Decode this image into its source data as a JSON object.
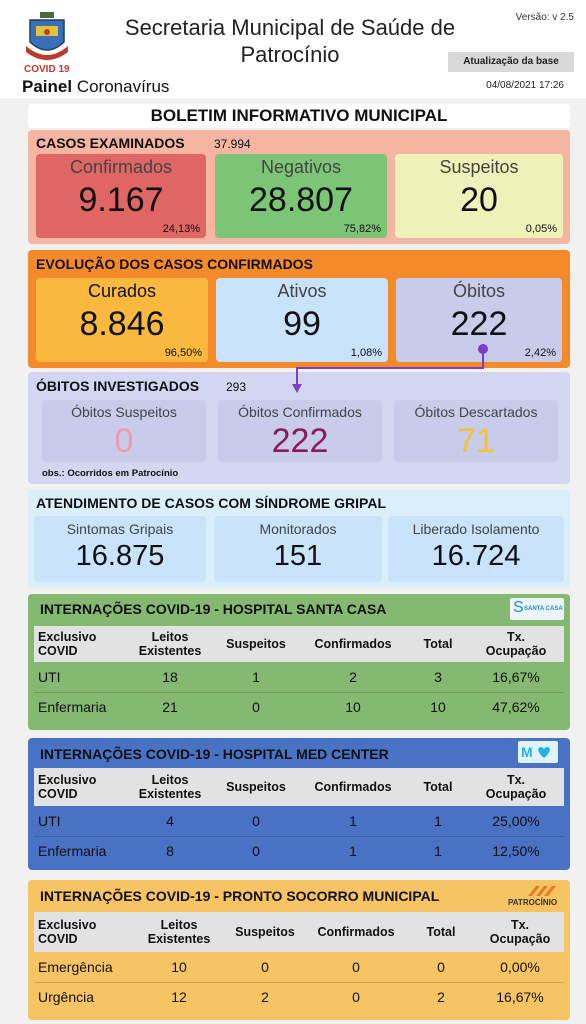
{
  "header": {
    "title": "Secretaria Municipal de Saúde de Patrocínio",
    "version": "Versão: v 2.5",
    "covid_tag": "COVID 19",
    "painel_bold": "Painel",
    "painel_rest": " Coronavírus",
    "update_label": "Atualização da base",
    "update_datetime": "04/08/2021 17:26"
  },
  "bulletin_title": "BOLETIM INFORMATIVO MUNICIPAL",
  "casos": {
    "title": "CASOS EXAMINADOS",
    "total": "37.994",
    "cards": [
      {
        "label": "Confirmados",
        "value": "9.167",
        "pct": "24,13%"
      },
      {
        "label": "Negativos",
        "value": "28.807",
        "pct": "75,82%"
      },
      {
        "label": "Suspeitos",
        "value": "20",
        "pct": "0,05%"
      }
    ]
  },
  "evolucao": {
    "title": "EVOLUÇÃO DOS CASOS CONFIRMADOS",
    "cards": [
      {
        "label": "Curados",
        "value": "8.846",
        "pct": "96,50%"
      },
      {
        "label": "Ativos",
        "value": "99",
        "pct": "1,08%"
      },
      {
        "label": "Óbitos",
        "value": "222",
        "pct": "2,42%"
      }
    ]
  },
  "obitos": {
    "title": "ÓBITOS INVESTIGADOS",
    "total": "293",
    "cards": [
      {
        "label": "Óbitos Suspeitos",
        "value": "0"
      },
      {
        "label": "Óbitos Confirmados",
        "value": "222"
      },
      {
        "label": "Óbitos Descartados",
        "value": "71"
      }
    ],
    "obs": "obs.: Ocorridos em Patrocínio"
  },
  "sindrome": {
    "title": "ATENDIMENTO DE CASOS COM SÍNDROME GRIPAL",
    "cards": [
      {
        "label": "Sintomas Gripais",
        "value": "16.875"
      },
      {
        "label": "Monitorados",
        "value": "151"
      },
      {
        "label": "Liberado Isolamento",
        "value": "16.724"
      }
    ]
  },
  "columns": {
    "c1a": "Exclusivo",
    "c1b": "COVID",
    "c2a": "Leitos",
    "c2b": "Existentes",
    "c3": "Suspeitos",
    "c4": "Confirmados",
    "c5": "Total",
    "c6a": "Tx.",
    "c6b": "Ocupação"
  },
  "santacasa": {
    "title": "INTERNAÇÕES COVID-19 - HOSPITAL SANTA CASA",
    "logo_text": "SANTA CASA",
    "rows": [
      {
        "name": "UTI",
        "leitos": "18",
        "suspeitos": "1",
        "confirmados": "2",
        "total": "3",
        "tx": "16,67%"
      },
      {
        "name": "Enfermaria",
        "leitos": "21",
        "suspeitos": "0",
        "confirmados": "10",
        "total": "10",
        "tx": "47,62%"
      }
    ]
  },
  "medcenter": {
    "title": "INTERNAÇÕES COVID-19 - HOSPITAL MED CENTER",
    "rows": [
      {
        "name": "UTI",
        "leitos": "4",
        "suspeitos": "0",
        "confirmados": "1",
        "total": "1",
        "tx": "25,00%"
      },
      {
        "name": "Enfermaria",
        "leitos": "8",
        "suspeitos": "0",
        "confirmados": "1",
        "total": "1",
        "tx": "12,50%"
      }
    ]
  },
  "prontosocorro": {
    "title": "INTERNAÇÕES COVID-19 - PRONTO SOCORRO MUNICIPAL",
    "logo_text": "PATROCÍNIO",
    "rows": [
      {
        "name": "Emergência",
        "leitos": "10",
        "suspeitos": "0",
        "confirmados": "0",
        "total": "0",
        "tx": "0,00%"
      },
      {
        "name": "Urgência",
        "leitos": "12",
        "suspeitos": "2",
        "confirmados": "0",
        "total": "2",
        "tx": "16,67%"
      }
    ]
  },
  "colors": {
    "casos_panel": "#f4b6a2",
    "confirmados": "#e06666",
    "negativos": "#7cc576",
    "suspeitos": "#eef2b8",
    "evolucao_panel": "#f58a2a",
    "curados": "#f8b93e",
    "ativos": "#c8e3fa",
    "obitos_card": "#c9cbea",
    "obitos_panel": "#d3d6f1",
    "obitos_zero": "#f09ab2",
    "obitos_conf": "#8b1a5c",
    "obitos_desc": "#f3c234",
    "sindrome_panel": "#daeefc",
    "santacasa_panel": "#85b870",
    "medcenter_panel": "#4a72c4",
    "prontosocorro_panel": "#f7c463"
  }
}
